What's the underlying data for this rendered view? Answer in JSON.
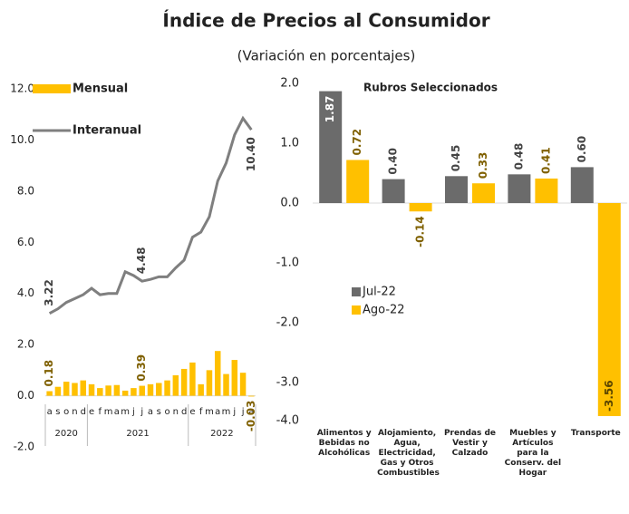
{
  "title": "Índice de Precios al Consumidor",
  "subtitle": "(Variación en porcentajes)",
  "chart_data": [
    {
      "type": "bar-line",
      "categories": [
        "a",
        "s",
        "o",
        "n",
        "d",
        "e",
        "f",
        "m",
        "a",
        "m",
        "j",
        "j",
        "a",
        "s",
        "o",
        "n",
        "d",
        "e",
        "f",
        "m",
        "a",
        "m",
        "j",
        "j",
        "a"
      ],
      "groups": [
        {
          "label": "2020",
          "count": 5
        },
        {
          "label": "2021",
          "count": 12
        },
        {
          "label": "2022",
          "count": 8
        }
      ],
      "series": [
        {
          "name": "Mensual",
          "kind": "bar",
          "color": "#ffc000",
          "values": [
            0.18,
            0.35,
            0.55,
            0.5,
            0.6,
            0.45,
            0.3,
            0.4,
            0.42,
            0.2,
            0.3,
            0.39,
            0.45,
            0.5,
            0.6,
            0.8,
            1.05,
            1.3,
            0.45,
            1.0,
            1.75,
            0.85,
            1.4,
            0.9,
            -0.03
          ],
          "value_labels": [
            "0.18",
            null,
            null,
            null,
            null,
            null,
            null,
            null,
            null,
            null,
            null,
            "0.39",
            null,
            null,
            null,
            null,
            null,
            null,
            null,
            null,
            null,
            null,
            null,
            null,
            "-0.03"
          ]
        },
        {
          "name": "Interanual",
          "kind": "line",
          "color": "#7f7f7f",
          "values": [
            3.22,
            3.4,
            3.65,
            3.8,
            3.95,
            4.2,
            3.95,
            4.0,
            4.0,
            4.85,
            4.7,
            4.48,
            4.55,
            4.65,
            4.65,
            5.0,
            5.3,
            6.2,
            6.4,
            7.0,
            8.4,
            9.1,
            10.2,
            10.85,
            10.4
          ],
          "value_labels": [
            "3.22",
            null,
            null,
            null,
            null,
            null,
            null,
            null,
            null,
            null,
            null,
            "4.48",
            null,
            null,
            null,
            null,
            null,
            null,
            null,
            null,
            null,
            null,
            null,
            null,
            "10.40"
          ]
        }
      ],
      "ylim": [
        -2,
        12
      ],
      "yticks": [
        {
          "value": -2,
          "label": "-2.0"
        },
        {
          "value": 0,
          "label": "0.0"
        },
        {
          "value": 2,
          "label": "2.0"
        },
        {
          "value": 4,
          "label": "4.0"
        },
        {
          "value": 6,
          "label": "6.0"
        },
        {
          "value": 8,
          "label": "8.0"
        },
        {
          "value": 10,
          "label": "10.0"
        },
        {
          "value": 12,
          "label": "12.0"
        }
      ],
      "legend": "top-left"
    },
    {
      "type": "bar",
      "title": "Rubros Seleccionados",
      "categories": [
        "Alimentos y Bebidas no Alcohólicas",
        "Alojamiento, Agua, Electricidad, Gas y Otros Combustibles",
        "Prendas de Vestir y Calzado",
        "Muebles y Artículos para la Conserv. del Hogar",
        "Transporte"
      ],
      "series": [
        {
          "name": "Jul-22",
          "color": "#6b6b6b",
          "values": [
            1.87,
            0.4,
            0.45,
            0.48,
            0.6
          ],
          "value_labels": [
            "1.87",
            "0.40",
            "0.45",
            "0.48",
            "0.60"
          ]
        },
        {
          "name": "Ago-22",
          "color": "#ffc000",
          "values": [
            0.72,
            -0.14,
            0.33,
            0.41,
            -3.56
          ],
          "value_labels": [
            "0.72",
            "-0.14",
            "0.33",
            "0.41",
            "-3.56"
          ]
        }
      ],
      "ylim": [
        -4,
        2
      ],
      "yticks": [
        {
          "value": -4,
          "label": "-4.0"
        },
        {
          "value": -3,
          "label": "-3.0"
        },
        {
          "value": -2,
          "label": "-2.0"
        },
        {
          "value": -1,
          "label": "-1.0"
        },
        {
          "value": 0,
          "label": "0.0"
        },
        {
          "value": 1,
          "label": "1.0"
        },
        {
          "value": 2,
          "label": "2.0"
        }
      ],
      "legend": "middle-left"
    }
  ]
}
